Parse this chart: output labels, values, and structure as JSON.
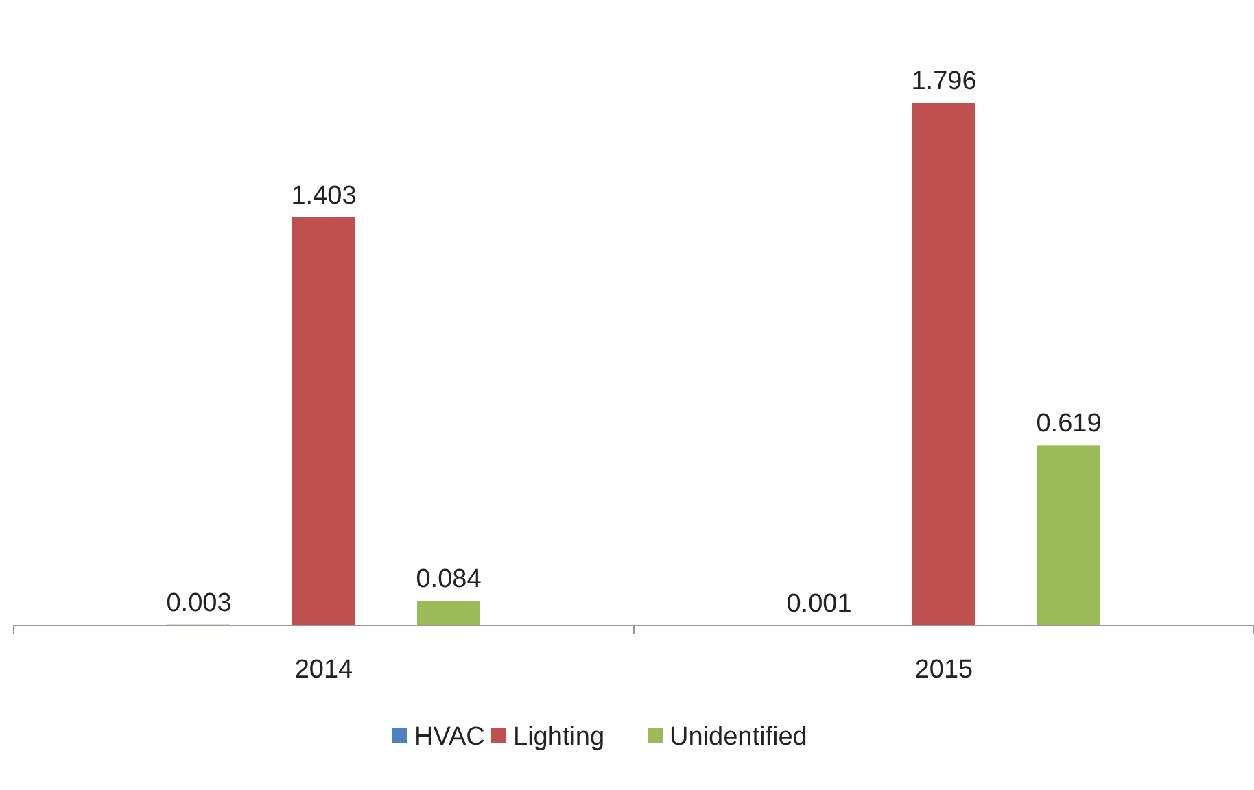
{
  "chart_data": {
    "type": "bar",
    "categories": [
      "2014",
      "2015"
    ],
    "series": [
      {
        "name": "HVAC",
        "color": "#4f81bd",
        "values": [
          0.003,
          0.001
        ]
      },
      {
        "name": "Lighting",
        "color": "#c0504d",
        "values": [
          1.403,
          1.796
        ]
      },
      {
        "name": "Unidentified",
        "color": "#9bbb59",
        "values": [
          0.084,
          0.619
        ]
      }
    ],
    "data_labels": true,
    "legend": "bottom"
  }
}
